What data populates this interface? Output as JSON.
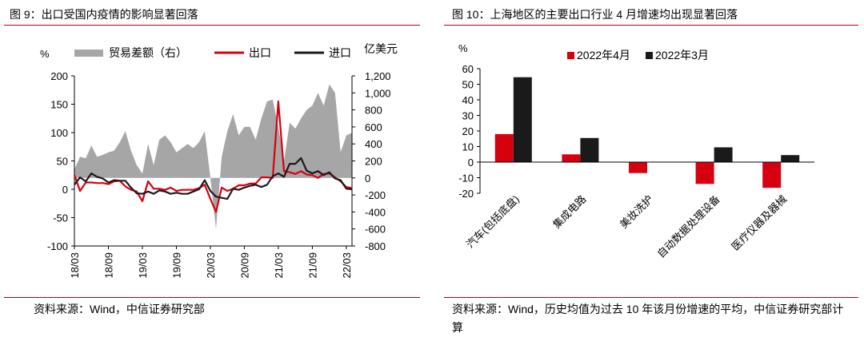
{
  "charts": [
    {
      "fig_title": "图 9：出口受国内疫情的影响显著回落",
      "source": "资料来源：Wind，中信证券研究部",
      "y_unit_left": "%",
      "y_unit_right": "亿美元",
      "colors": {
        "trade": "#a6a6a6",
        "export": "#d7000f",
        "import": "#1a1a1a"
      }
    },
    {
      "fig_title": "图 10：上海地区的主要出口行业 4 月增速均出现显著回落",
      "source": "资料来源：Wind，历史均值为过去 10 年该月份增速的平均，中信证券研究部计算",
      "y_unit": "%",
      "colors": {
        "apr": "#d7000f",
        "mar": "#1a1a1a"
      }
    }
  ],
  "chart_data": [
    {
      "type": "line",
      "x_tick_labels": [
        "18/03",
        "18/09",
        "19/03",
        "19/09",
        "20/03",
        "20/09",
        "21/03",
        "21/09",
        "22/03"
      ],
      "x_tick_index": [
        0,
        6,
        12,
        18,
        24,
        30,
        36,
        42,
        48
      ],
      "ylim_left": [
        -100,
        200
      ],
      "yticks_left": [
        "200",
        "150",
        "100",
        "50",
        "0",
        "-50",
        "-100"
      ],
      "ylim_right": [
        -800,
        1200
      ],
      "yticks_right": [
        "1,200",
        "1,000",
        "800",
        "600",
        "400",
        "200",
        "0",
        "-200",
        "-400",
        "-600",
        "-800"
      ],
      "series": [
        {
          "name": "贸易差额（右）",
          "axis": "right",
          "type": "area",
          "values": [
            100,
            250,
            230,
            380,
            250,
            270,
            300,
            320,
            420,
            550,
            320,
            150,
            50,
            400,
            150,
            450,
            500,
            420,
            300,
            350,
            400,
            350,
            420,
            550,
            0,
            -600,
            250,
            550,
            750,
            500,
            600,
            600,
            450,
            700,
            900,
            920,
            600,
            200,
            650,
            580,
            700,
            800,
            850,
            1000,
            850,
            1100,
            1000,
            300,
            500,
            530
          ]
        },
        {
          "name": "出口",
          "axis": "left",
          "type": "line",
          "values": [
            25,
            -3,
            12,
            12,
            11,
            11,
            9,
            14,
            15,
            5,
            -1,
            -4,
            -21,
            14,
            1,
            1,
            -1,
            3,
            -3,
            -1,
            -1,
            -1,
            2,
            8,
            -17,
            -40,
            3,
            -3,
            1,
            7,
            7,
            10,
            10,
            21,
            21,
            20,
            155,
            32,
            30,
            27,
            32,
            26,
            25,
            20,
            27,
            28,
            21,
            14,
            4,
            2
          ]
        },
        {
          "name": "进口",
          "axis": "left",
          "type": "line",
          "values": [
            8,
            21,
            14,
            28,
            22,
            19,
            12,
            16,
            15,
            15,
            3,
            -7,
            -8,
            -4,
            -8,
            -2,
            -4,
            -8,
            -6,
            -8,
            -8,
            -4,
            0,
            16,
            -3,
            -13,
            -15,
            -17,
            1,
            -1,
            3,
            6,
            8,
            4,
            8,
            23,
            28,
            22,
            45,
            45,
            55,
            33,
            28,
            32,
            25,
            30,
            19,
            16,
            1,
            0
          ]
        }
      ]
    },
    {
      "type": "bar",
      "title": "",
      "categories": [
        "汽车(包括底盘)",
        "集成电路",
        "美妆洗护",
        "自动数据处理设备",
        "医疗仪器及器械"
      ],
      "ylim": [
        -20,
        60
      ],
      "yticks": [
        "60",
        "50",
        "40",
        "30",
        "20",
        "10",
        "0",
        "-10",
        "-20"
      ],
      "legend_position": "top",
      "series": [
        {
          "name": "2022年4月",
          "values": [
            18,
            5,
            -7,
            -14,
            -16.5
          ]
        },
        {
          "name": "2022年3月",
          "values": [
            54.5,
            15.5,
            0,
            9.5,
            4.5
          ]
        }
      ]
    }
  ]
}
